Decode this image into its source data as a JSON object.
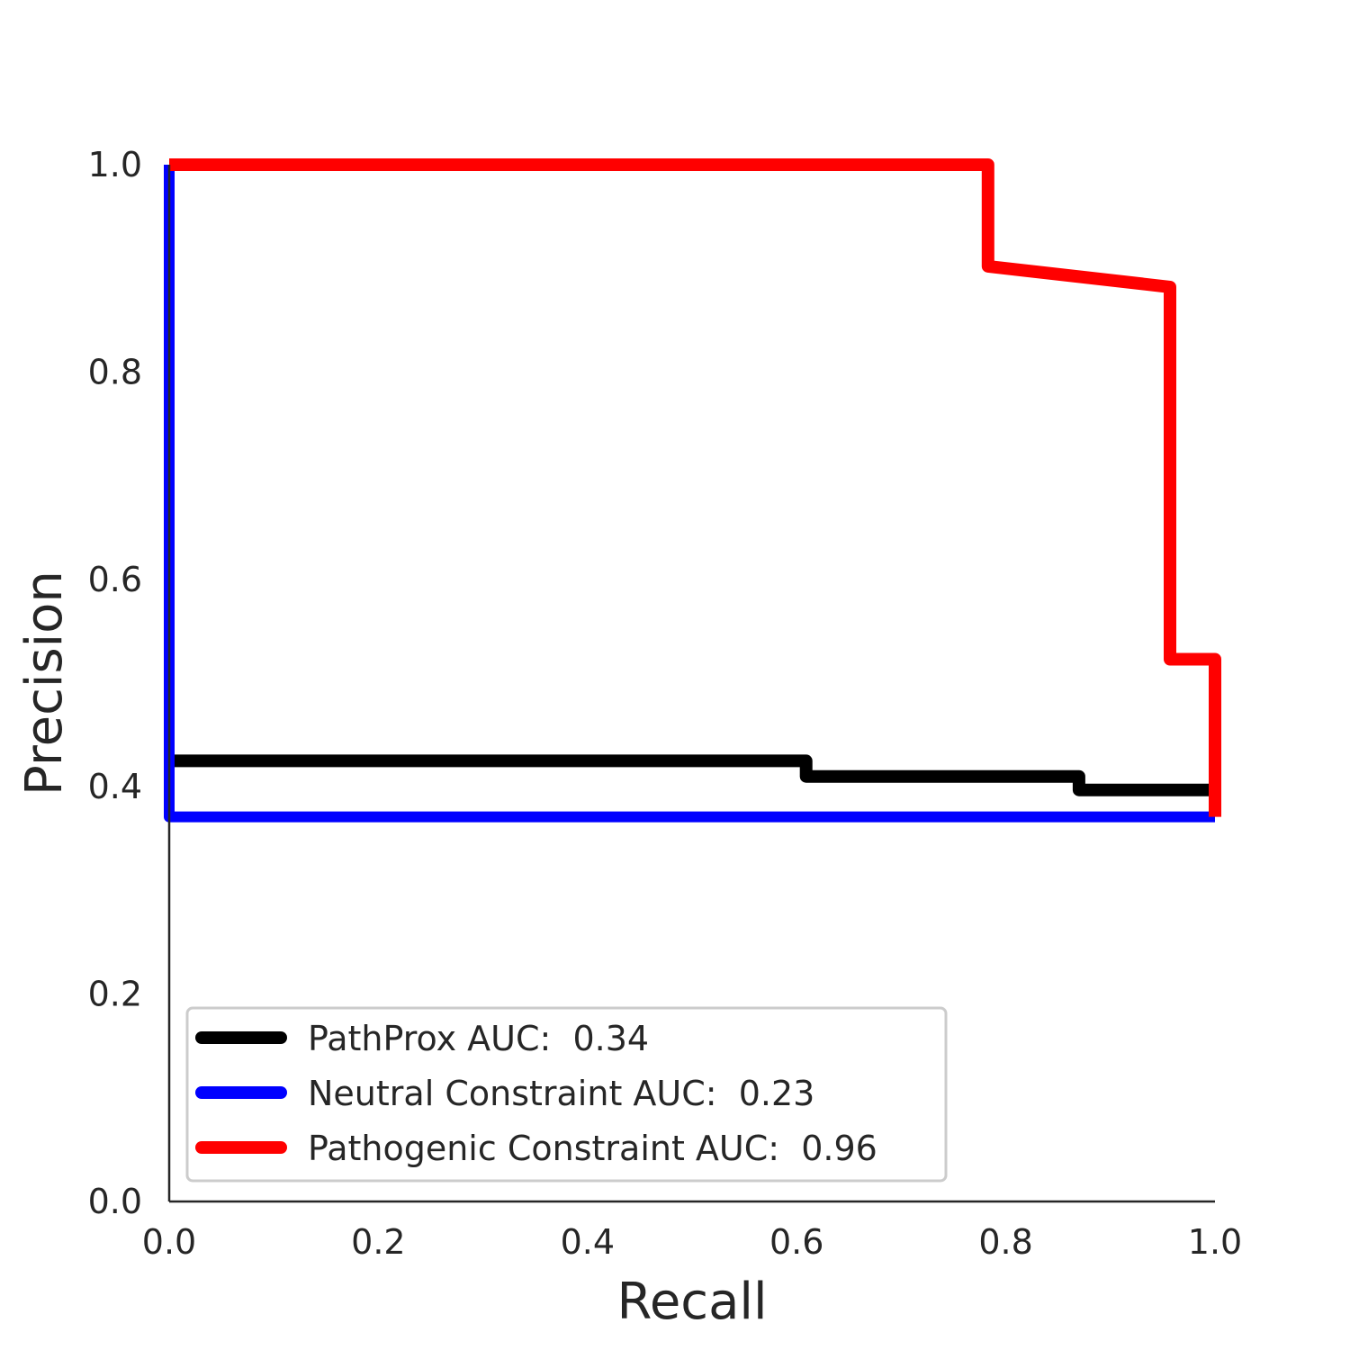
{
  "chart_data": {
    "type": "line",
    "title": "",
    "xlabel": "Recall",
    "ylabel": "Precision",
    "xlim": [
      0,
      1
    ],
    "ylim": [
      0,
      1
    ],
    "xticks": [
      "0.0",
      "0.2",
      "0.4",
      "0.6",
      "0.8",
      "1.0"
    ],
    "yticks": [
      "0.0",
      "0.2",
      "0.4",
      "0.6",
      "0.8",
      "1.0"
    ],
    "grid": false,
    "legend_position": "lower-left",
    "series": [
      {
        "name": "PathProx AUC:  0.34",
        "color": "#000000",
        "x": [
          0.0,
          0.609,
          0.609,
          0.87,
          0.87,
          1.0
        ],
        "y": [
          0.425,
          0.425,
          0.41,
          0.41,
          0.397,
          0.397
        ]
      },
      {
        "name": "Neutral Constraint AUC:  0.23",
        "color": "#0000ff",
        "x": [
          0.0,
          0.0,
          1.0
        ],
        "y": [
          1.0,
          0.371,
          0.371
        ]
      },
      {
        "name": "Pathogenic Constraint AUC:  0.96",
        "color": "#ff0000",
        "x": [
          0.0,
          0.783,
          0.783,
          0.957,
          0.957,
          1.0,
          1.0
        ],
        "y": [
          1.0,
          1.0,
          0.902,
          0.882,
          0.523,
          0.523,
          0.371
        ]
      }
    ]
  }
}
